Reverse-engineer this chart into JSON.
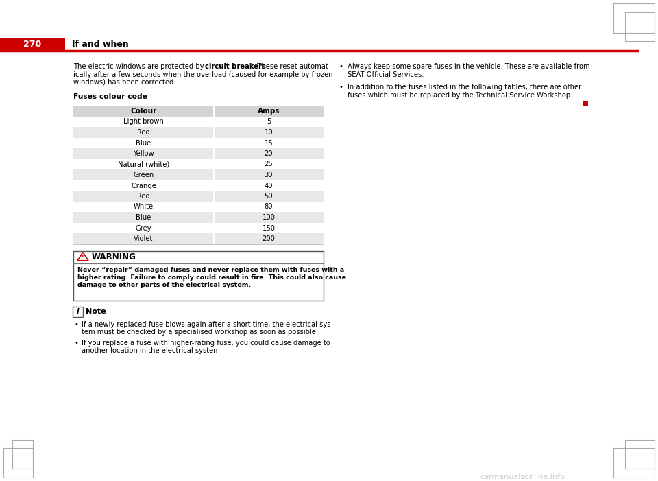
{
  "page_num": "270",
  "section_title": "If and when",
  "bg_color": "#ffffff",
  "header_red": "#cc0000",
  "header_line_color": "#cc0000",
  "table_headers": [
    "Colour",
    "Amps"
  ],
  "table_rows": [
    [
      "Light brown",
      "5"
    ],
    [
      "Red",
      "10"
    ],
    [
      "Blue",
      "15"
    ],
    [
      "Yellow",
      "20"
    ],
    [
      "Natural (white)",
      "25"
    ],
    [
      "Green",
      "30"
    ],
    [
      "Orange",
      "40"
    ],
    [
      "Red",
      "50"
    ],
    [
      "White",
      "80"
    ],
    [
      "Blue",
      "100"
    ],
    [
      "Grey",
      "150"
    ],
    [
      "Violet",
      "200"
    ]
  ],
  "table_header_bg": "#d4d4d4",
  "table_row_bg_shaded": "#e8e8e8",
  "table_row_bg_plain": "#ffffff",
  "warning_title": "WARNING",
  "warning_text_lines": [
    "Never “repair” damaged fuses and never replace them with fuses with a",
    "higher rating. Failure to comply could result in fire. This could also cause",
    "damage to other parts of the electrical system."
  ],
  "note_title": "Note",
  "note_bullet1_lines": [
    "If a newly replaced fuse blows again after a short time, the electrical sys-",
    "tem must be checked by a specialised workshop as soon as possible."
  ],
  "note_bullet2_lines": [
    "If you replace a fuse with higher-rating fuse, you could cause damage to",
    "another location in the electrical system."
  ],
  "right_bullet1_lines": [
    "Always keep some spare fuses in the vehicle. These are available from",
    "SEAT Official Services."
  ],
  "right_bullet2_lines": [
    "In addition to the fuses listed in the following tables, there are other",
    "fuses which must be replaced by the Technical Service Workshop."
  ],
  "red_square_color": "#cc0000",
  "corner_color": "#aaaaaa",
  "watermark": "carmanualsonline.info",
  "watermark_color": "#aaaaaa"
}
